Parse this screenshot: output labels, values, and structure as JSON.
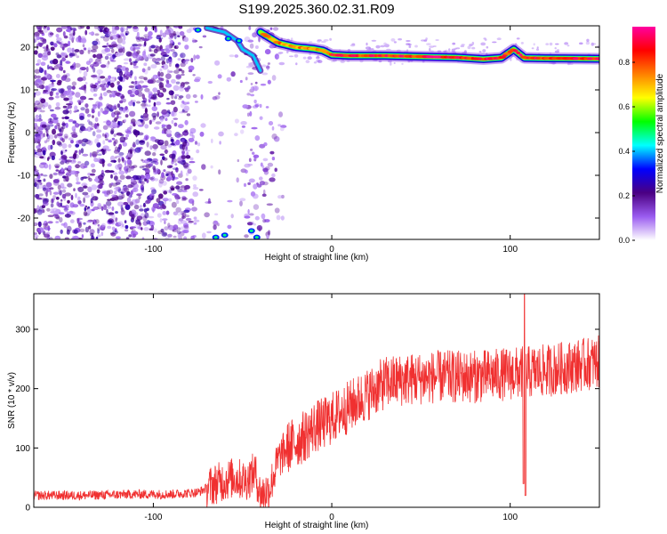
{
  "title": "S199.2025.360.02.31.R09",
  "chart_data": [
    {
      "type": "heatmap",
      "xlabel": "Height of straight line (km)",
      "ylabel": "Frequency (Hz)",
      "xlim": [
        -167,
        150
      ],
      "ylim": [
        -25,
        25
      ],
      "xticks": [
        -100,
        0,
        100
      ],
      "yticks": [
        -20,
        -10,
        0,
        10,
        20
      ],
      "colorbar": {
        "label": "Normalized spectral amplitude",
        "range": [
          0,
          0.96
        ],
        "ticks": [
          0,
          0.2,
          0.4,
          0.6,
          0.8
        ],
        "colors": [
          "#ffffff",
          "#9a5cf0",
          "#4b0082",
          "#0000ff",
          "#00ffff",
          "#00ff00",
          "#ffff00",
          "#ff8000",
          "#ff0000",
          "#ff00a0"
        ]
      },
      "ridge": [
        [
          -40,
          23.5
        ],
        [
          -30,
          21.0
        ],
        [
          -20,
          20.0
        ],
        [
          -10,
          19.6
        ],
        [
          -5,
          19.2
        ],
        [
          0,
          18.2
        ],
        [
          10,
          18.0
        ],
        [
          30,
          18.0
        ],
        [
          50,
          17.8
        ],
        [
          70,
          17.6
        ],
        [
          85,
          17.2
        ],
        [
          95,
          17.5
        ],
        [
          102,
          19.5
        ],
        [
          108,
          17.5
        ],
        [
          120,
          17.4
        ],
        [
          150,
          17.3
        ]
      ],
      "secondary_ridge": [
        [
          -70,
          24.5
        ],
        [
          -60,
          23.5
        ],
        [
          -53,
          21.5
        ],
        [
          -50,
          19.5
        ],
        [
          -44,
          18.0
        ],
        [
          -40,
          14.5
        ]
      ]
    },
    {
      "type": "line",
      "xlabel": "Height of straight line (km)",
      "ylabel": "SNR (10 * v/v)",
      "xlim": [
        -167,
        150
      ],
      "ylim": [
        0,
        360
      ],
      "xticks": [
        -100,
        0,
        100
      ],
      "yticks": [
        0,
        100,
        200,
        300
      ],
      "series": [
        {
          "color": "#f03030",
          "x": [
            -167,
            -140,
            -110,
            -90,
            -75,
            -65,
            -55,
            -48,
            -43,
            -40,
            -35,
            -30,
            -25,
            -20,
            -15,
            -10,
            -5,
            0,
            10,
            20,
            30,
            40,
            60,
            80,
            100,
            120,
            140,
            150
          ],
          "y": [
            20,
            20,
            22,
            22,
            25,
            40,
            50,
            45,
            60,
            20,
            30,
            80,
            100,
            110,
            120,
            135,
            140,
            150,
            170,
            190,
            210,
            215,
            220,
            220,
            225,
            230,
            240,
            245
          ]
        }
      ]
    }
  ]
}
